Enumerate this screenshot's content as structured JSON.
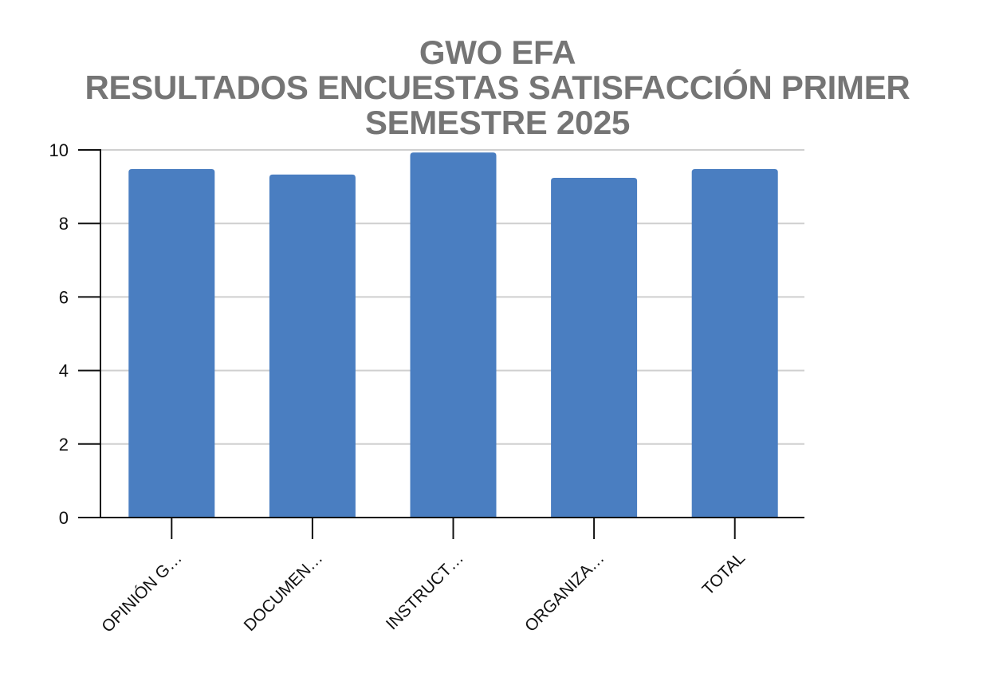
{
  "chart_data": {
    "type": "bar",
    "title": "GWO EFA\nRESULTADOS ENCUESTAS SATISFACCIÓN PRIMER SEMESTRE 2025",
    "title_lines": [
      "GWO EFA",
      "RESULTADOS ENCUESTAS SATISFACCIÓN PRIMER",
      "SEMESTRE 2025"
    ],
    "categories": [
      "OPINIÓN G…",
      "DOCUMEN…",
      "INSTRUCT…",
      "ORGANIZA…",
      "TOTAL"
    ],
    "values": [
      9.48,
      9.33,
      9.93,
      9.24,
      9.48
    ],
    "xlabel": "",
    "ylabel": "",
    "ylim": [
      0,
      10
    ],
    "yticks": [
      0,
      2,
      4,
      6,
      8,
      10
    ],
    "grid": true,
    "legend": "none",
    "colors": {
      "bar": "#4a7ec1",
      "title": "#757575",
      "grid": "#cfcfcf",
      "axis": "#111111"
    }
  }
}
